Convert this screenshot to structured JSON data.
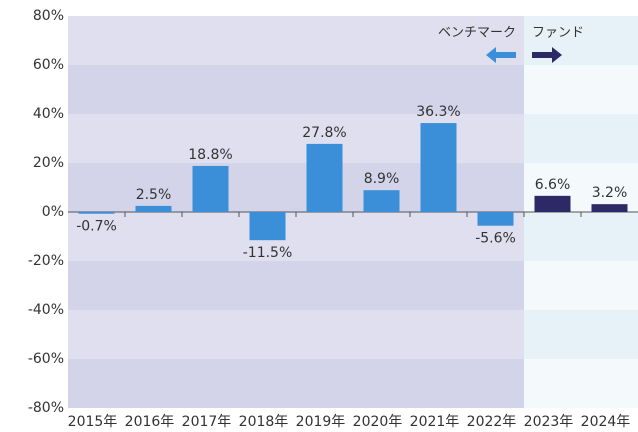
{
  "chart_data": {
    "type": "bar",
    "categories": [
      "2015年",
      "2016年",
      "2017年",
      "2018年",
      "2019年",
      "2020年",
      "2021年",
      "2022年",
      "2023年",
      "2024年"
    ],
    "series": [
      {
        "name": "ベンチマーク",
        "color": "#3a8fd8",
        "values": [
          -0.7,
          2.5,
          18.8,
          -11.5,
          27.8,
          8.9,
          36.3,
          -5.6,
          null,
          null
        ],
        "value_labels": [
          "-0.7%",
          "2.5%",
          "18.8%",
          "-11.5%",
          "27.8%",
          "8.9%",
          "36.3%",
          "-5.6%",
          null,
          null
        ]
      },
      {
        "name": "ファンド",
        "color": "#2d2966",
        "values": [
          null,
          null,
          null,
          null,
          null,
          null,
          null,
          null,
          6.6,
          3.2
        ],
        "value_labels": [
          null,
          null,
          null,
          null,
          null,
          null,
          null,
          null,
          "6.6%",
          "3.2%"
        ]
      }
    ],
    "ylim": [
      -80,
      80
    ],
    "yticks": [
      {
        "value": -80,
        "label": "-80%"
      },
      {
        "value": -60,
        "label": "-60%"
      },
      {
        "value": -40,
        "label": "-40%"
      },
      {
        "value": -20,
        "label": "-20%"
      },
      {
        "value": 0,
        "label": "0%"
      },
      {
        "value": 20,
        "label": "20%"
      },
      {
        "value": 40,
        "label": "40%"
      },
      {
        "value": 60,
        "label": "60%"
      },
      {
        "value": 80,
        "label": "80%"
      }
    ]
  }
}
